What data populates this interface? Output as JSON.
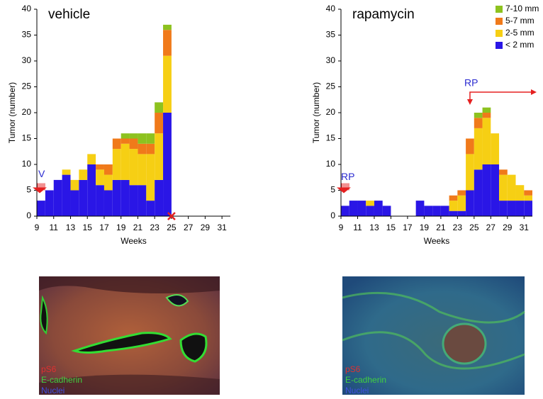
{
  "chart_data": [
    {
      "type": "histogram",
      "title": "vehicle",
      "x_label": "Weeks",
      "y_label": "Tumor (number)",
      "bins": [
        9,
        10,
        11,
        12,
        13,
        14,
        15,
        16,
        17,
        18,
        19,
        20,
        21,
        22,
        23,
        24,
        25,
        26,
        27,
        28,
        29,
        30,
        31,
        32
      ],
      "xlim": [
        9,
        32
      ],
      "xticks": [
        9,
        11,
        13,
        15,
        17,
        19,
        21,
        23,
        25,
        27,
        29,
        31
      ],
      "ylim": [
        0,
        40
      ],
      "yticks": [
        0,
        5,
        10,
        15,
        20,
        25,
        30,
        35,
        40
      ],
      "series": [
        {
          "name": "< 2 mm",
          "color": "#2a16e6",
          "values": [
            3,
            5,
            7,
            8,
            5,
            7,
            10,
            6,
            5,
            7,
            7,
            6,
            6,
            3,
            7,
            20,
            0,
            0,
            0,
            0,
            0,
            0,
            0
          ]
        },
        {
          "name": "2-5 mm",
          "color": "#f6cf14",
          "values": [
            0,
            0,
            0,
            1,
            2,
            2,
            2,
            3,
            3,
            6,
            7,
            7,
            6,
            9,
            9,
            11,
            0,
            0,
            0,
            0,
            0,
            0,
            0
          ]
        },
        {
          "name": "5-7 mm",
          "color": "#f07a1a",
          "values": [
            0,
            0,
            0,
            0,
            0,
            0,
            0,
            1,
            2,
            2,
            1,
            2,
            2,
            2,
            4,
            5,
            0,
            0,
            0,
            0,
            0,
            0,
            0
          ]
        },
        {
          "name": "7-10 mm",
          "color": "#8dc21f",
          "values": [
            0,
            0,
            0,
            0,
            0,
            0,
            0,
            0,
            0,
            0,
            1,
            1,
            2,
            2,
            2,
            1,
            0,
            0,
            0,
            0,
            0,
            0,
            0
          ]
        }
      ],
      "annotations": [
        "V"
      ]
    },
    {
      "type": "histogram",
      "title": "rapamycin",
      "x_label": "Weeks",
      "y_label": "Tumor (number)",
      "bins": [
        9,
        10,
        11,
        12,
        13,
        14,
        15,
        16,
        17,
        18,
        19,
        20,
        21,
        22,
        23,
        24,
        25,
        26,
        27,
        28,
        29,
        30,
        31,
        32
      ],
      "xlim": [
        9,
        32
      ],
      "xticks": [
        9,
        11,
        13,
        15,
        17,
        19,
        21,
        23,
        25,
        27,
        29,
        31
      ],
      "ylim": [
        0,
        40
      ],
      "yticks": [
        0,
        5,
        10,
        15,
        20,
        25,
        30,
        35,
        40
      ],
      "legend": "top-right",
      "series": [
        {
          "name": "< 2 mm",
          "color": "#2a16e6",
          "values": [
            2,
            3,
            3,
            2,
            3,
            2,
            0,
            0,
            0,
            3,
            2,
            2,
            2,
            1,
            1,
            5,
            9,
            10,
            10,
            3,
            3,
            3,
            3
          ]
        },
        {
          "name": "2-5 mm",
          "color": "#f6cf14",
          "values": [
            0,
            0,
            0,
            1,
            0,
            0,
            0,
            0,
            0,
            0,
            0,
            0,
            0,
            2,
            3,
            7,
            8,
            9,
            6,
            5,
            5,
            3,
            1
          ]
        },
        {
          "name": "5-7 mm",
          "color": "#f07a1a",
          "values": [
            0,
            0,
            0,
            0,
            0,
            0,
            0,
            0,
            0,
            0,
            0,
            0,
            0,
            1,
            1,
            3,
            2,
            1,
            0,
            1,
            0,
            0,
            1
          ]
        },
        {
          "name": "7-10 mm",
          "color": "#8dc21f",
          "values": [
            0,
            0,
            0,
            0,
            0,
            0,
            0,
            0,
            0,
            0,
            0,
            0,
            0,
            0,
            0,
            0,
            1,
            1,
            0,
            0,
            0,
            0,
            0
          ]
        }
      ],
      "annotations": [
        "RP",
        "RP"
      ]
    }
  ],
  "images": [
    {
      "labels": [
        "pS6",
        "E-cadherin",
        "Nuclei"
      ]
    },
    {
      "labels": [
        "pS6",
        "E-cadherin",
        "Nuclei"
      ]
    }
  ]
}
